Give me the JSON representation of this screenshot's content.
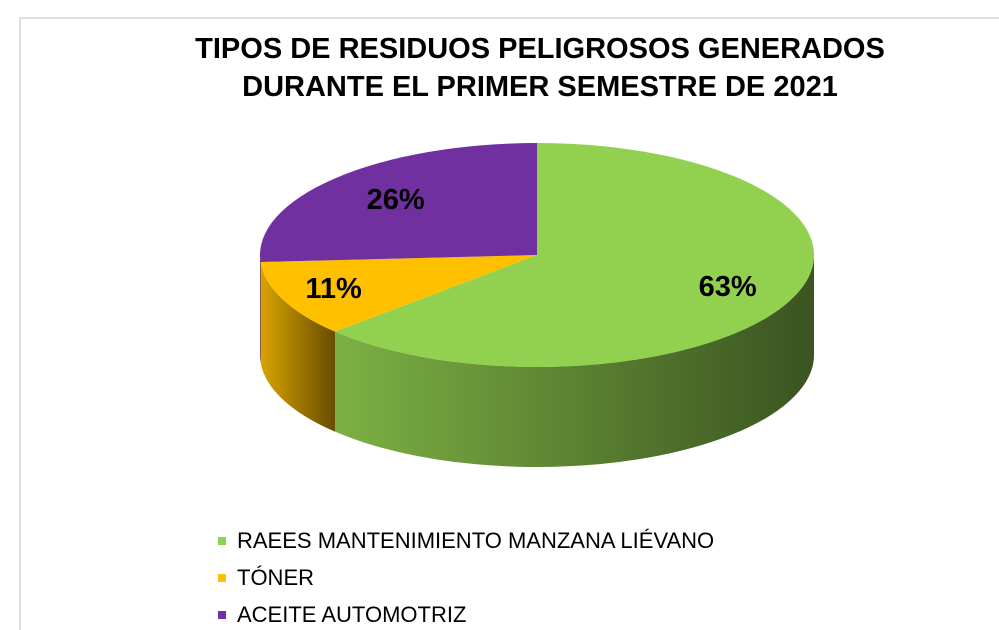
{
  "chart_data": {
    "type": "pie",
    "title": "TIPOS DE RESIDUOS  PELIGROSOS  GENERADOS DURANTE EL PRIMER SEMESTRE DE 2021",
    "categories": [
      "RAEES  MANTENIMIENTO  MANZANA LIÉVANO",
      "TÓNER",
      "ACEITE AUTOMOTRIZ"
    ],
    "values": [
      63,
      11,
      26
    ],
    "value_labels": [
      "63%",
      "11%",
      "26%"
    ],
    "colors": [
      "#92d050",
      "#ffc000",
      "#7030a0"
    ],
    "legend": "bottom"
  }
}
